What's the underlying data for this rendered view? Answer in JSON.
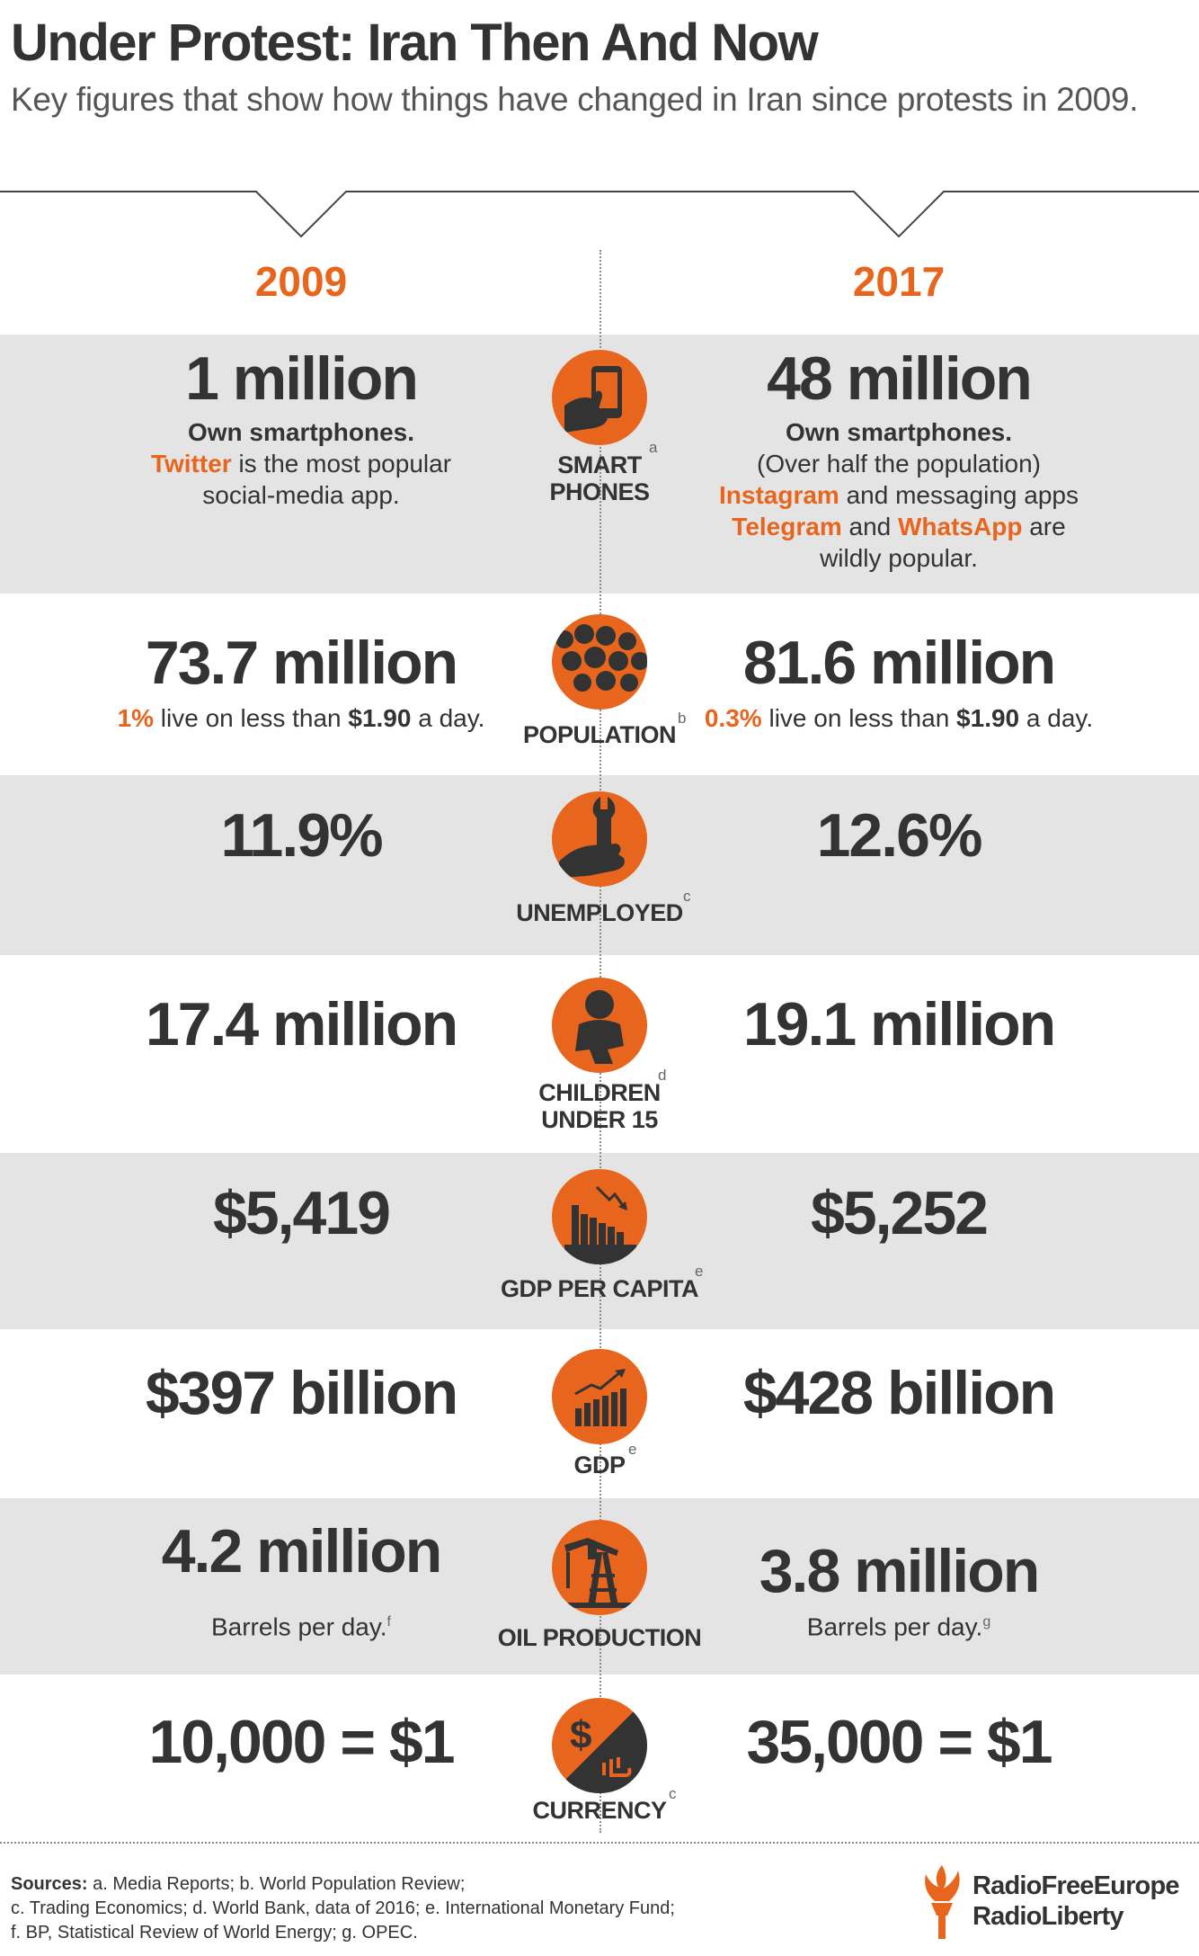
{
  "header": {
    "title": "Under Protest: Iran Then And Now",
    "subtitle": "Key figures that show how things have changed in Iran since protests in 2009."
  },
  "years": {
    "left": "2009",
    "right": "2017"
  },
  "colors": {
    "accent": "#e8651d",
    "dark": "#333333",
    "band": "#e4e4e4"
  },
  "rows": {
    "smartphones": {
      "icon": "smartphone-hand-icon",
      "label_line1": "SMART",
      "label_line2": "PHONES",
      "note": "a",
      "left_value": "1 million",
      "left_line1": "Own smartphones.",
      "left_line2_brand": "Twitter",
      "left_line2_rest": " is the most popular",
      "left_line3": "social-media app.",
      "right_value": "48 million",
      "right_line1": "Own smartphones.",
      "right_line2": "(Over half the population)",
      "right_line3_brand": "Instagram",
      "right_line3_rest": " and messaging apps",
      "right_line4_brand1": "Telegram",
      "right_line4_mid": " and ",
      "right_line4_brand2": "WhatsApp",
      "right_line4_rest": " are",
      "right_line5": "wildly popular."
    },
    "population": {
      "icon": "people-dots-icon",
      "label": "POPULATION",
      "note": "b",
      "left_value": "73.7 million",
      "left_pct": "1%",
      "left_mid": " live on less than ",
      "left_amount": "$1.90",
      "left_end": " a day.",
      "right_value": "81.6 million",
      "right_pct": "0.3%",
      "right_mid": " live on less than ",
      "right_amount": "$1.90",
      "right_end": " a day."
    },
    "unemployed": {
      "icon": "wrench-hand-icon",
      "label": "UNEMPLOYED",
      "note": "c",
      "left_value": "11.9%",
      "right_value": "12.6%"
    },
    "children": {
      "icon": "baby-icon",
      "label_line1": "CHILDREN",
      "label_line2": "UNDER 15",
      "note": "d",
      "left_value": "17.4 million",
      "right_value": "19.1 million"
    },
    "gdp_per_capita": {
      "icon": "falling-city-chart-icon",
      "label": "GDP PER CAPITA",
      "note": "e",
      "left_value": "$5,419",
      "right_value": "$5,252"
    },
    "gdp": {
      "icon": "rising-bar-chart-icon",
      "label": "GDP",
      "note": "e",
      "left_value": "$397 billion",
      "right_value": "$428 billion"
    },
    "oil": {
      "icon": "oil-pump-icon",
      "label": "OIL PRODUCTION",
      "left_value": "4.2 million",
      "left_sub": "Barrels per day.",
      "left_note": "f",
      "right_value": "3.8 million",
      "right_sub": "Barrels per day.",
      "right_note": "g"
    },
    "currency": {
      "icon": "dollar-rial-icon",
      "label": "CURRENCY",
      "note": "c",
      "left_value": "10,000 = $1",
      "right_value": "35,000 = $1"
    }
  },
  "footer": {
    "sources_label": "Sources:",
    "sources_line1": " a. Media Reports; b. World Population Review;",
    "sources_line2": "c. Trading Economics; d. World Bank, data of 2016; e. International Monetary Fund;",
    "sources_line3": "f. BP, Statistical Review of World Energy; g. OPEC.",
    "logo_line1": "RadioFreeEurope",
    "logo_line2": "RadioLiberty",
    "logo_icon": "rferl-torch-icon"
  }
}
